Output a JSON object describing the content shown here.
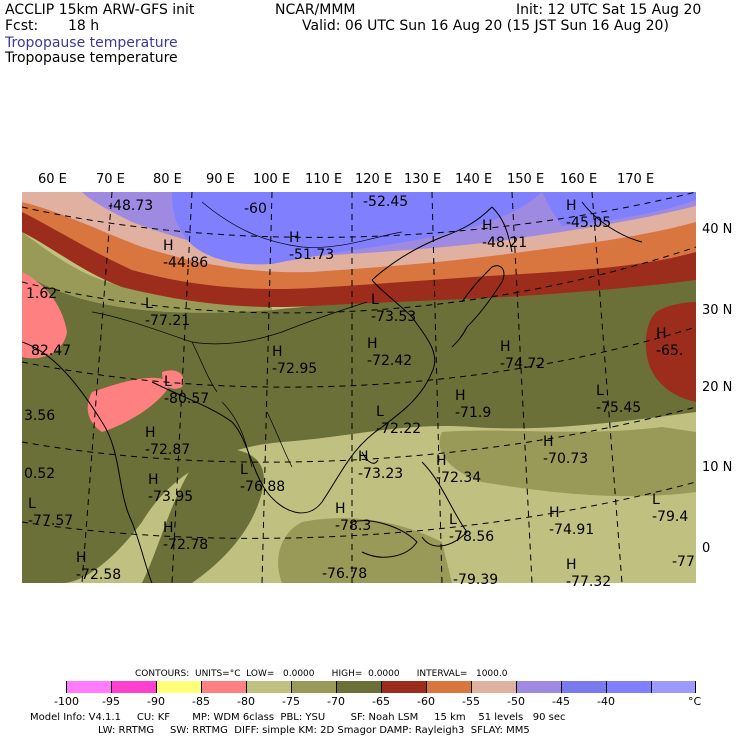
{
  "header": {
    "model": "ACCLIP 15km ARW-GFS init",
    "fcst_label": "Fcst:",
    "fcst_value": "18 h",
    "center": "NCAR/MMM",
    "init": "Init: 12 UTC Sat 15 Aug 20",
    "valid": "Valid: 06 UTC Sun 16 Aug 20 (15 JST Sun 16 Aug 20)",
    "field_blue": "Tropopause temperature",
    "field_black": "Tropopause temperature"
  },
  "map": {
    "lon_labels": [
      "60 E",
      "70 E",
      "80 E",
      "90 E",
      "100 E",
      "110 E",
      "120 E",
      "130 E",
      "140 E",
      "150 E",
      "160 E",
      "170 E"
    ],
    "lat_labels": [
      "40 N",
      "30 N",
      "20 N",
      "10 N",
      "0"
    ],
    "extrema": [
      {
        "mark": "",
        "value": "-48.73"
      },
      {
        "mark": "",
        "value": "-60"
      },
      {
        "mark": "",
        "value": "-52.45"
      },
      {
        "mark": "H",
        "value": "-45.05"
      },
      {
        "mark": "H",
        "value": "-44.86"
      },
      {
        "mark": "H",
        "value": "-51.73"
      },
      {
        "mark": "H",
        "value": "-48.21"
      },
      {
        "mark": "",
        "value": "1.62"
      },
      {
        "mark": "L",
        "value": "-77.21"
      },
      {
        "mark": "L",
        "value": "-73.53"
      },
      {
        "mark": "H",
        "value": "-65."
      },
      {
        "mark": "",
        "value": "82.47"
      },
      {
        "mark": "H",
        "value": "-72.95"
      },
      {
        "mark": "H",
        "value": "-72.42"
      },
      {
        "mark": "H",
        "value": "-74.72"
      },
      {
        "mark": "L",
        "value": "-80.57"
      },
      {
        "mark": "H",
        "value": "-71.9"
      },
      {
        "mark": "L",
        "value": "-75.45"
      },
      {
        "mark": "",
        "value": "3.56"
      },
      {
        "mark": "L",
        "value": "-72.22"
      },
      {
        "mark": "H",
        "value": "-72.87"
      },
      {
        "mark": "H",
        "value": "-70.73"
      },
      {
        "mark": "H",
        "value": "-73.23"
      },
      {
        "mark": "H",
        "value": "-72.34"
      },
      {
        "mark": "",
        "value": "0.52"
      },
      {
        "mark": "H",
        "value": "-73.95"
      },
      {
        "mark": "L",
        "value": "-76.88"
      },
      {
        "mark": "L",
        "value": "-77.57"
      },
      {
        "mark": "H",
        "value": "-78.3"
      },
      {
        "mark": "L",
        "value": "-78.56"
      },
      {
        "mark": "H",
        "value": "-74.91"
      },
      {
        "mark": "L",
        "value": "-79.4"
      },
      {
        "mark": "H",
        "value": "-72.78"
      },
      {
        "mark": "H",
        "value": "-72.58"
      },
      {
        "mark": "",
        "value": "-76.78"
      },
      {
        "mark": "",
        "value": "-79.39"
      },
      {
        "mark": "H",
        "value": "-77.32"
      },
      {
        "mark": "",
        "value": "-77"
      }
    ]
  },
  "contours_line": "CONTOURS:  UNITS=°C  LOW=   0.0000      HIGH=  0.0000      INTERVAL=   1000.0",
  "colorbar": {
    "colors": [
      "#ffffff",
      "#ff7cff",
      "#ff40cf",
      "#ffff7a",
      "#ff8080",
      "#c0c080",
      "#9a9a58",
      "#6b7038",
      "#9c2c1c",
      "#d9753f",
      "#e0b0a0",
      "#9e8ae0",
      "#7a7af0",
      "#8080ff",
      "#9a9aff"
    ],
    "ticks": [
      "-100",
      "-95",
      "-90",
      "-85",
      "-80",
      "-75",
      "-70",
      "-65",
      "-60",
      "-55",
      "-50",
      "-45",
      "-40"
    ],
    "unit": "°C"
  },
  "footer": {
    "line1": "Model Info: V4.1.1     CU: KF       MP: WDM 6class  PBL: YSU        SF: Noah LSM     15 km    51 levels   90 sec",
    "line2": "LW: RRTMG     SW: RRTMG  DIFF: simple KM: 2D Smagor DAMP: Rayleigh3  SFLAY: MM5"
  }
}
